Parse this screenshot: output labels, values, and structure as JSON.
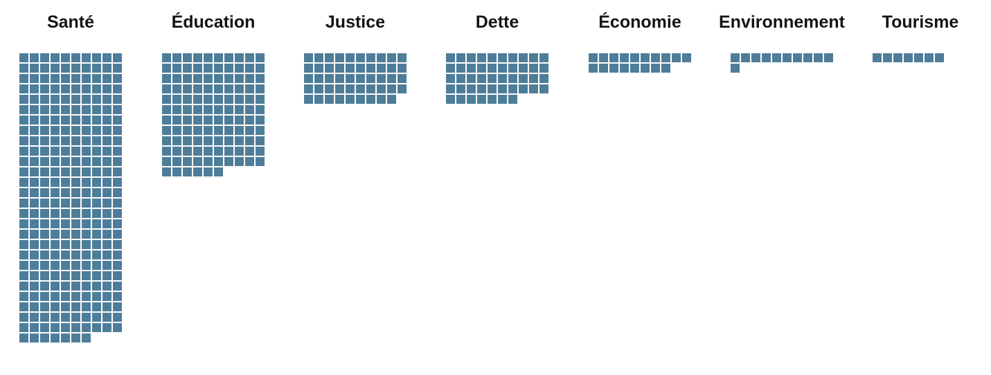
{
  "chart_data": {
    "type": "waffle",
    "unit_per_square": 1,
    "squares_per_row": 10,
    "color": "#4e7d99",
    "categories": [
      "Santé",
      "Éducation",
      "Justice",
      "Dette",
      "Économie",
      "Environnement",
      "Tourisme"
    ],
    "values": [
      277,
      116,
      49,
      47,
      18,
      11,
      7
    ]
  }
}
